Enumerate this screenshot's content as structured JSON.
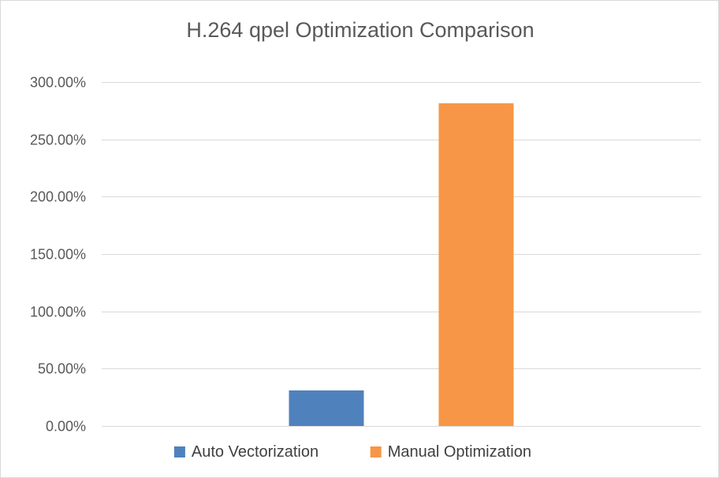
{
  "chart_data": {
    "type": "bar",
    "title": "H.264 qpel Optimization Comparison",
    "xlabel": "",
    "ylabel": "",
    "categories": [
      ""
    ],
    "series": [
      {
        "name": "Auto Vectorization",
        "values": [
          31.0
        ],
        "color": "#4f81bd"
      },
      {
        "name": "Manual Optimization",
        "values": [
          281.5
        ],
        "color": "#f79646"
      }
    ],
    "ylim": [
      0,
      300
    ],
    "yticks": [
      0,
      50,
      100,
      150,
      200,
      250,
      300
    ],
    "ytick_labels": [
      "0.00%",
      "50.00%",
      "100.00%",
      "150.00%",
      "200.00%",
      "250.00%",
      "300.00%"
    ],
    "grid": true,
    "legend_position": "bottom"
  }
}
